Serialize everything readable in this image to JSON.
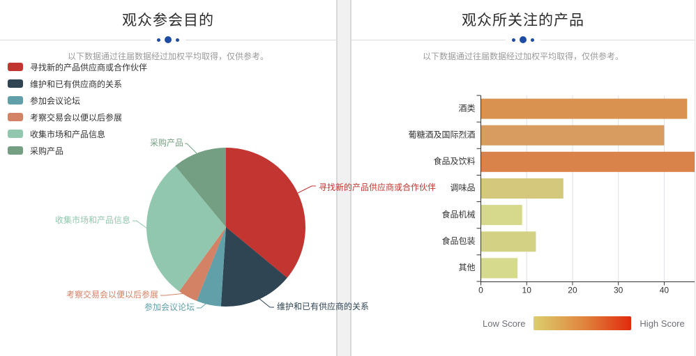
{
  "panels": [
    {
      "title": "观众参会目的",
      "subtitle": "以下数据通过往届数据经过加权平均取得，仅供参考。"
    },
    {
      "title": "观众所关注的产品",
      "subtitle": "以下数据通过往届数据经过加权平均取得，仅供参考。"
    }
  ],
  "accent": {
    "divider_dot_color": "#1e4ca4",
    "divider_line_color": "#dcdcdc"
  },
  "chart_data": [
    {
      "type": "pie",
      "title": "观众参会目的",
      "legend_position": "top-left",
      "series": [
        {
          "name": "寻找新的产品供应商或合作伙伴",
          "value": 36,
          "color": "#c23531"
        },
        {
          "name": "维护和已有供应商的关系",
          "value": 15,
          "color": "#2f4554"
        },
        {
          "name": "参加会议论坛",
          "value": 5,
          "color": "#61a0a8"
        },
        {
          "name": "考察交易会以便以后参展",
          "value": 4,
          "color": "#d48265"
        },
        {
          "name": "收集市场和产品信息",
          "value": 29,
          "color": "#91c7ae"
        },
        {
          "name": "采购产品",
          "value": 11,
          "color": "#749f83"
        }
      ]
    },
    {
      "type": "bar",
      "title": "观众所关注的产品",
      "orientation": "horizontal",
      "categories": [
        "酒类",
        "葡糖酒及国际烈酒",
        "食品及饮料",
        "调味品",
        "食品机械",
        "食品包装",
        "其他"
      ],
      "values": [
        45,
        40,
        47,
        18,
        9,
        12,
        8
      ],
      "bar_colors": [
        "#d9924f",
        "#d89c60",
        "#d9834a",
        "#d3c87b",
        "#d6d98b",
        "#d3d284",
        "#d6da8c"
      ],
      "xlabel": "",
      "ylabel": "",
      "xlim": [
        0,
        47
      ],
      "xticks": [
        0,
        10,
        20,
        30,
        40
      ],
      "grid": true,
      "visualmap": {
        "low_label": "Low Score",
        "high_label": "High Score",
        "gradient": [
          "#dbcf6e",
          "#e0873f",
          "#e02b0d"
        ]
      }
    }
  ]
}
